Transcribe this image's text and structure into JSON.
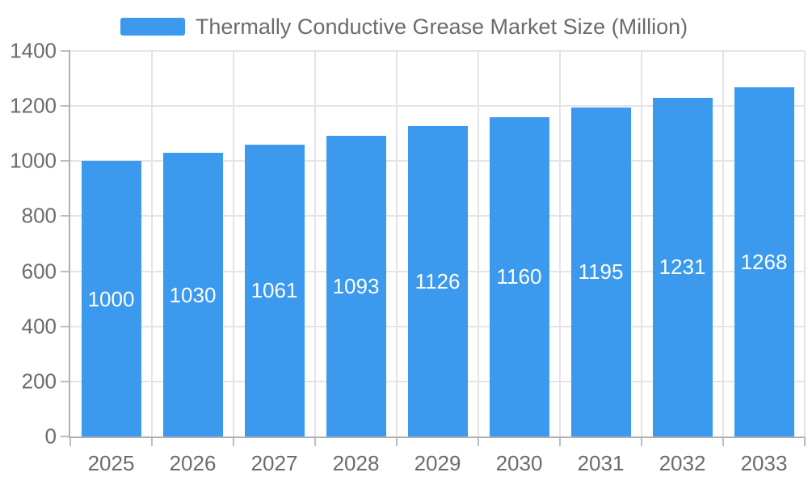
{
  "chart_data": {
    "type": "bar",
    "title": "Thermally Conductive Grease Market Size (Million)",
    "legend_label": "Thermally Conductive Grease Market Size (Million)",
    "legend_position": "top",
    "categories": [
      "2025",
      "2026",
      "2027",
      "2028",
      "2029",
      "2030",
      "2031",
      "2032",
      "2033"
    ],
    "values": [
      1000,
      1030,
      1061,
      1093,
      1126,
      1160,
      1195,
      1231,
      1268
    ],
    "xlabel": "",
    "ylabel": "",
    "ylim": [
      0,
      1400
    ],
    "yticks": [
      0,
      200,
      400,
      600,
      800,
      1000,
      1200,
      1400
    ],
    "grid": true,
    "bar_color": "#3b99ee",
    "value_label_color": "#ffffff",
    "axis_label_color": "#6b6b6b",
    "gridline_color": "#e4e4e8",
    "axis_line_color": "#b0b0b4",
    "tick_color": "#bdbdc1",
    "background_color": "#ffffff"
  }
}
